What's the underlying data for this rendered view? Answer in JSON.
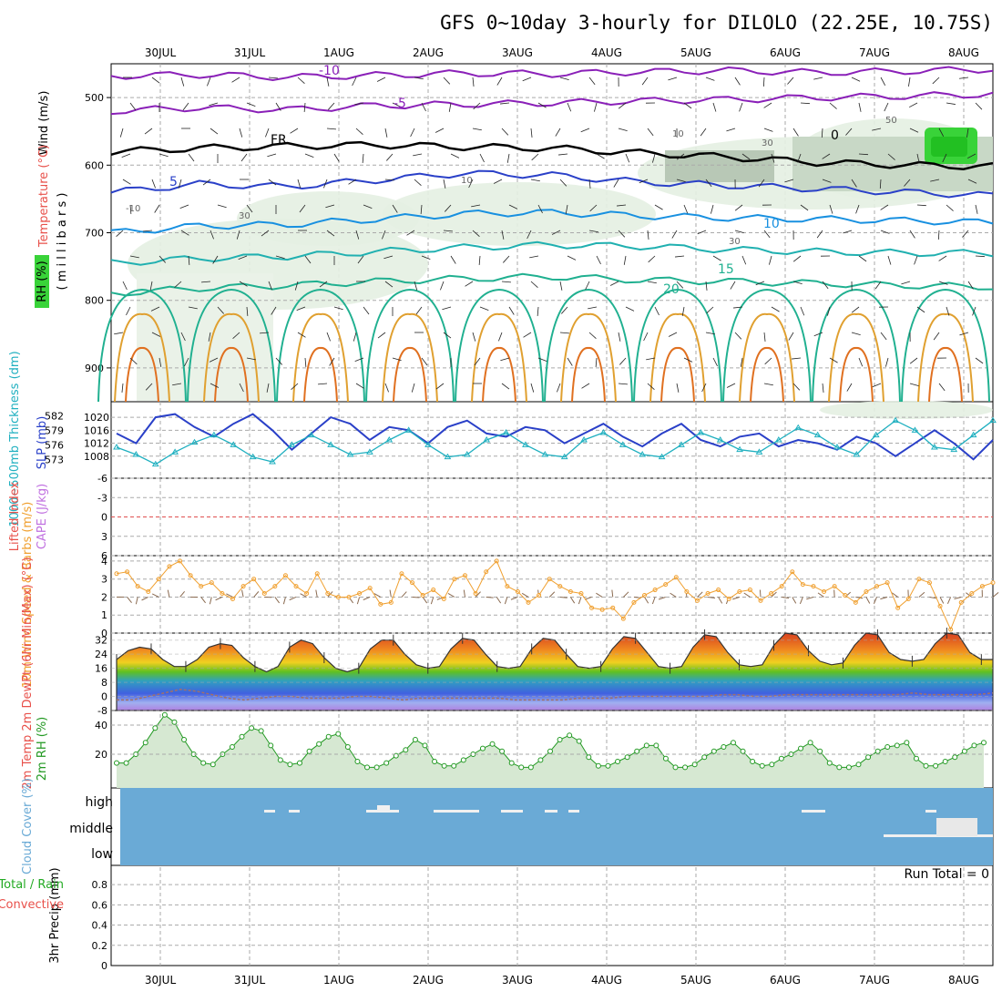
{
  "title": "GFS 0~10day 3-hourly for DILOLO (22.25E, 10.75S)",
  "dates": [
    "30JUL",
    "31JUL",
    "1AUG",
    "2AUG",
    "3AUG",
    "4AUG",
    "5AUG",
    "6AUG",
    "7AUG",
    "8AUG"
  ],
  "colors": {
    "rh_green": "#39d339",
    "temp_red": "#e8504a",
    "rain_green": "#22aa22",
    "cape_purple": "#c070e0",
    "wind_orange": "#f0a030",
    "slp_blue": "#2a40c8",
    "thick_cyan": "#20b0c0",
    "cloud_blue": "#6aaad6",
    "rh2m_green": "#229922"
  },
  "chart_data": [
    {
      "panel": "upper-air",
      "type": "heatmap",
      "ylabel_wind": "Wind (m/s)",
      "ylabel_temp": "Temperature (°C)",
      "ylabel_rh": "RH (%)",
      "ylabel_units": "( m i l l i b a r s )",
      "y_ticks": [
        "500",
        "600",
        "700",
        "800",
        "900"
      ],
      "ylim": [
        450,
        950
      ],
      "contour_labels": [
        "-10",
        "-5",
        "FR",
        "5",
        "10",
        "15",
        "20",
        "0",
        "50",
        "30",
        "10",
        "30",
        "-10",
        "30",
        "10"
      ],
      "isotherms": [
        {
          "label": "-10",
          "y": [
            468,
            466,
            470,
            467,
            464,
            465,
            462,
            460,
            463,
            461,
            458
          ]
        },
        {
          "label": "-5",
          "y": [
            520,
            515,
            518,
            512,
            510,
            508,
            505,
            503,
            500,
            498,
            495
          ]
        },
        {
          "label": "FR",
          "y": [
            580,
            575,
            572,
            570,
            573,
            575,
            582,
            588,
            596,
            600,
            602
          ]
        },
        {
          "label": "5",
          "y": [
            640,
            628,
            632,
            622,
            612,
            615,
            625,
            630,
            635,
            640,
            645
          ]
        },
        {
          "label": "10",
          "y": [
            700,
            690,
            688,
            680,
            672,
            670,
            675,
            678,
            680,
            682,
            685
          ]
        },
        {
          "label": "15",
          "y": [
            745,
            738,
            735,
            728,
            722,
            718,
            720,
            725,
            728,
            730,
            730
          ]
        },
        {
          "label": "20",
          "y": [
            790,
            782,
            778,
            772,
            768,
            765,
            770,
            772,
            775,
            778,
            780
          ]
        }
      ]
    },
    {
      "panel": "slp-thickness",
      "type": "line",
      "ylabel": "SLP (mb)",
      "ylabel2": "1000~500mb Thickness (dm)",
      "y_ticks": [
        "1020",
        "1016",
        "1012",
        "1008"
      ],
      "y2_ticks": [
        "582",
        "579",
        "576",
        "573"
      ],
      "series": [
        {
          "name": "SLP (mb)",
          "values": [
            1015,
            1012,
            1020,
            1021,
            1017,
            1014,
            1018,
            1021,
            1016,
            1010,
            1015,
            1020,
            1018,
            1013,
            1017,
            1016,
            1012,
            1017,
            1019,
            1015,
            1014,
            1017,
            1016,
            1012,
            1015,
            1018,
            1014,
            1011,
            1015,
            1018,
            1013,
            1011,
            1014,
            1015,
            1011,
            1013,
            1012,
            1010,
            1014,
            1012,
            1008,
            1012,
            1016,
            1012,
            1007,
            1013
          ]
        },
        {
          "name": "1000~500mb Thickness (dm)",
          "values": [
            575.5,
            574,
            572,
            574.5,
            576.5,
            578,
            576,
            573.5,
            572.5,
            576,
            578,
            576,
            574,
            574.5,
            577,
            579,
            576,
            573.5,
            574,
            577,
            578.5,
            576,
            574,
            573.5,
            577,
            578.5,
            576,
            574,
            573.5,
            576,
            578.5,
            577,
            575,
            574.5,
            577,
            579.5,
            578,
            575.5,
            574,
            578,
            581,
            579,
            575.5,
            575,
            578,
            581
          ]
        }
      ]
    },
    {
      "panel": "lifted-cape",
      "type": "line",
      "ylabel": "Lifted Index",
      "ylabel2": "CAPE (J/kg)",
      "y_ticks": [
        "-6",
        "-3",
        "0",
        "3",
        "6"
      ],
      "ylim": [
        -6,
        6
      ]
    },
    {
      "panel": "wind10m",
      "type": "line",
      "ylabel": "10m Wind Speed & Barbs (m/s)",
      "y_ticks": [
        "4",
        "3",
        "2",
        "1",
        "0"
      ],
      "ylim": [
        0,
        4.3
      ],
      "series": [
        {
          "name": "10m Wind",
          "values": [
            3.3,
            3.4,
            2.6,
            2.3,
            3.0,
            3.7,
            4.0,
            3.2,
            2.6,
            2.8,
            2.2,
            1.9,
            2.6,
            3.0,
            2.2,
            2.6,
            3.2,
            2.6,
            2.2,
            3.3,
            2.2,
            2.0,
            2.0,
            2.2,
            2.5,
            1.6,
            1.7,
            3.3,
            2.8,
            2.1,
            2.4,
            1.9,
            3.0,
            3.2,
            2.2,
            3.4,
            4.0,
            2.6,
            2.3,
            1.7,
            2.1,
            3.0,
            2.6,
            2.3,
            2.2,
            1.4,
            1.3,
            1.4,
            0.8,
            1.7,
            2.1,
            2.4,
            2.7,
            3.1,
            2.3,
            1.8,
            2.2,
            2.4,
            1.9,
            2.3,
            2.4,
            1.8,
            2.2,
            2.6,
            3.4,
            2.7,
            2.6,
            2.3,
            2.6,
            2.1,
            1.7,
            2.3,
            2.6,
            2.8,
            1.4,
            1.9,
            3.0,
            2.8,
            1.5,
            0.2,
            1.7,
            2.2,
            2.6,
            2.8
          ]
        }
      ]
    },
    {
      "panel": "temp2m",
      "type": "area",
      "ylabel": "2m Temp 2m DewPt (6hr Min/Max) (°C)",
      "y_ticks": [
        "32",
        "24",
        "16",
        "8",
        "0",
        "-8"
      ],
      "ylim": [
        -8,
        36
      ],
      "series": [
        {
          "name": "2m Temp",
          "values": [
            21,
            26,
            28,
            27,
            21,
            17,
            17,
            21,
            28,
            30,
            29,
            22,
            17,
            14,
            17,
            28,
            32,
            30,
            22,
            16,
            14,
            16,
            27,
            32,
            32,
            24,
            18,
            16,
            17,
            27,
            33,
            32,
            24,
            17,
            16,
            17,
            27,
            33,
            32,
            24,
            17,
            16,
            17,
            27,
            34,
            33,
            25,
            17,
            16,
            17,
            28,
            35,
            34,
            25,
            18,
            17,
            18,
            29,
            36,
            35,
            26,
            20,
            18,
            19,
            29,
            36,
            35,
            25,
            21,
            20,
            21,
            30,
            36,
            35,
            25,
            21,
            21
          ]
        },
        {
          "name": "2m DewPt",
          "values": [
            -2,
            -2,
            0,
            2,
            4,
            3,
            1,
            -1,
            -2,
            -1,
            0,
            0,
            -1,
            -1,
            -1,
            0,
            0,
            -1,
            -2,
            -1,
            -1,
            -1,
            -1,
            -1,
            -1,
            -2,
            -2,
            -2,
            -2,
            -1,
            -1,
            -1,
            0,
            0,
            0,
            0,
            0,
            0,
            1,
            1,
            0,
            0,
            1,
            1,
            1,
            1,
            1,
            1,
            1,
            1,
            2,
            1,
            1,
            1,
            1,
            2
          ]
        }
      ]
    },
    {
      "panel": "rh2m",
      "type": "area",
      "ylabel": "2m RH (%)",
      "y_ticks": [
        "40",
        "20"
      ],
      "ylim": [
        0,
        50
      ],
      "series": [
        {
          "name": "2m RH",
          "values": [
            14,
            14,
            20,
            28,
            38,
            47,
            42,
            30,
            20,
            14,
            13,
            20,
            25,
            32,
            38,
            36,
            26,
            16,
            13,
            14,
            22,
            27,
            32,
            34,
            25,
            15,
            11,
            11,
            14,
            19,
            23,
            30,
            26,
            15,
            12,
            12,
            16,
            20,
            24,
            27,
            22,
            14,
            11,
            11,
            16,
            22,
            30,
            33,
            29,
            18,
            12,
            12,
            15,
            18,
            22,
            26,
            26,
            17,
            11,
            11,
            13,
            18,
            22,
            25,
            28,
            22,
            15,
            12,
            13,
            17,
            20,
            24,
            28,
            22,
            14,
            11,
            11,
            13,
            18,
            22,
            25,
            26,
            28,
            17,
            12,
            12,
            15,
            18,
            22,
            26,
            28
          ]
        }
      ]
    },
    {
      "panel": "cloud",
      "type": "bar",
      "ylabel": "Cloud Cover (%)",
      "y_ticks": [
        "high",
        "middle",
        "low"
      ]
    },
    {
      "panel": "precip",
      "type": "bar",
      "ylabel": "3hr Precip (mm)",
      "ylabel2": "Total / Rain",
      "ylabel3": "Convective",
      "y_ticks": [
        "0.8",
        "0.6",
        "0.4",
        "0.2",
        "0"
      ],
      "ylim": [
        0,
        0.9
      ],
      "run_total": "Run Total = 0"
    }
  ]
}
